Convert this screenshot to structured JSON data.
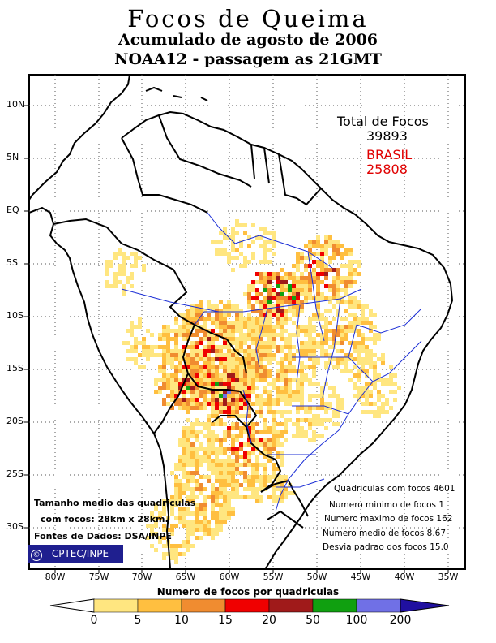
{
  "title": {
    "line1": "Focos de Queima",
    "line2": "Acumulado de agosto de 2006",
    "line3": "NOAA12 - passagem as 21GMT"
  },
  "axes": {
    "lat_labels": [
      "10N",
      "5N",
      "EQ",
      "5S",
      "10S",
      "15S",
      "20S",
      "25S",
      "30S"
    ],
    "lon_labels": [
      "80W",
      "75W",
      "70W",
      "65W",
      "60W",
      "55W",
      "50W",
      "45W",
      "40W",
      "35W"
    ]
  },
  "totals": {
    "label": "Total de Focos",
    "total": "39893",
    "brasil_label": "BRASIL",
    "brasil_total": "25808"
  },
  "stats": [
    "Quadriculas com focos 4601",
    "Numero minimo de focos 1",
    "Numero maximo de focos 162",
    "Numero medio de focos 8.67",
    "Desvia padrao dos focos 15.0"
  ],
  "notes": {
    "line1": "Tamanho medio das quadriculas",
    "line2": "com focos: 28km x 28km.",
    "line3": "Fontes de Dados: DSA/INPE"
  },
  "credit": {
    "symbol": "©",
    "label": "CPTEC/INPE"
  },
  "colorbar": {
    "title": "Numero de focos por quadriculas",
    "ticks": [
      "0",
      "5",
      "10",
      "15",
      "20",
      "50",
      "100",
      "200"
    ],
    "colors": [
      "#ffe680",
      "#ffbf40",
      "#f08c30",
      "#f00000",
      "#a01a1a",
      "#10a010",
      "#7070e6",
      "#2010a0"
    ],
    "low_color": "#ffffff"
  },
  "palette": {
    "border": "#000000",
    "rivers": "#1c2fd6",
    "credit_bg": "#1f1f8f",
    "brasil_text": "#e00000"
  }
}
